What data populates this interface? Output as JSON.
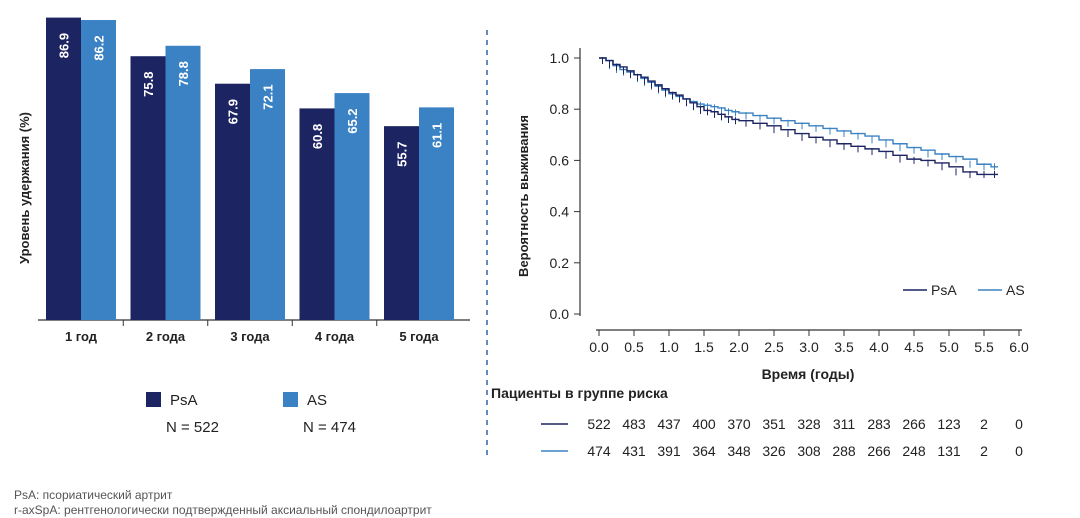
{
  "colors": {
    "psa": "#1c2461",
    "as": "#3b82c4",
    "divider": "#3b6fb0",
    "axis": "#333333"
  },
  "footnotes": {
    "psa": "PsA: псориатический артрит",
    "as": "r-axSpA:  рентгенологически подтвержденный аксиальный спондилоартрит"
  },
  "chart_data": [
    {
      "type": "bar",
      "ylabel": "Уровень удержания (%)",
      "xlabel": "",
      "categories": [
        "1 год",
        "2 года",
        "3 года",
        "4 года",
        "5 года"
      ],
      "ylim": [
        0,
        90
      ],
      "series": [
        {
          "name": "PsA",
          "values": [
            86.9,
            75.8,
            67.9,
            60.8,
            55.7
          ]
        },
        {
          "name": "AS",
          "values": [
            86.2,
            78.8,
            72.1,
            65.2,
            61.1
          ]
        }
      ],
      "legend": [
        {
          "name": "PsA",
          "n": "N = 522"
        },
        {
          "name": "AS",
          "n": "N = 474"
        }
      ],
      "legend_position": "bottom"
    },
    {
      "type": "line",
      "title": "",
      "xlabel": "Время (годы)",
      "ylabel": "Вероятность выживания",
      "xlim": [
        0,
        6
      ],
      "ylim": [
        0,
        1
      ],
      "xticks": [
        "0.0",
        "0.5",
        "1.0",
        "1.5",
        "2.0",
        "2.5",
        "3.0",
        "3.5",
        "4.0",
        "4.5",
        "5.0",
        "5.5",
        "6.0"
      ],
      "yticks": [
        "0.0",
        "0.2",
        "0.4",
        "0.6",
        "0.8",
        "1.0"
      ],
      "legend_position": "bottom-right",
      "series": [
        {
          "name": "PsA",
          "x": [
            0,
            0.1,
            0.2,
            0.3,
            0.4,
            0.5,
            0.6,
            0.7,
            0.8,
            0.9,
            1.0,
            1.1,
            1.2,
            1.3,
            1.4,
            1.5,
            1.6,
            1.7,
            1.8,
            1.9,
            2.0,
            2.2,
            2.4,
            2.6,
            2.8,
            3.0,
            3.2,
            3.4,
            3.6,
            3.8,
            4.0,
            4.2,
            4.4,
            4.6,
            4.8,
            5.0,
            5.2,
            5.4,
            5.6,
            5.7
          ],
          "y": [
            1.0,
            0.99,
            0.975,
            0.965,
            0.95,
            0.935,
            0.925,
            0.91,
            0.895,
            0.88,
            0.865,
            0.855,
            0.84,
            0.825,
            0.81,
            0.795,
            0.79,
            0.78,
            0.77,
            0.76,
            0.755,
            0.745,
            0.735,
            0.72,
            0.705,
            0.69,
            0.68,
            0.665,
            0.655,
            0.645,
            0.635,
            0.62,
            0.605,
            0.6,
            0.59,
            0.575,
            0.555,
            0.545,
            0.545,
            0.545
          ]
        },
        {
          "name": "AS",
          "x": [
            0,
            0.1,
            0.2,
            0.3,
            0.4,
            0.5,
            0.6,
            0.7,
            0.8,
            0.9,
            1.0,
            1.1,
            1.2,
            1.3,
            1.4,
            1.5,
            1.6,
            1.7,
            1.8,
            1.9,
            2.0,
            2.2,
            2.4,
            2.6,
            2.8,
            3.0,
            3.2,
            3.4,
            3.6,
            3.8,
            4.0,
            4.2,
            4.4,
            4.6,
            4.8,
            5.0,
            5.2,
            5.4,
            5.6,
            5.7
          ],
          "y": [
            1.0,
            0.99,
            0.97,
            0.955,
            0.945,
            0.935,
            0.92,
            0.905,
            0.89,
            0.875,
            0.86,
            0.85,
            0.84,
            0.83,
            0.82,
            0.815,
            0.81,
            0.805,
            0.795,
            0.79,
            0.785,
            0.775,
            0.765,
            0.755,
            0.745,
            0.735,
            0.725,
            0.715,
            0.705,
            0.695,
            0.68,
            0.665,
            0.65,
            0.64,
            0.625,
            0.615,
            0.605,
            0.585,
            0.575,
            0.575
          ]
        }
      ]
    },
    {
      "type": "table",
      "title": "Пациенты в группе риска",
      "x": [
        "0.0",
        "0.5",
        "1.0",
        "1.5",
        "2.0",
        "2.5",
        "3.0",
        "3.5",
        "4.0",
        "4.5",
        "5.0",
        "5.5",
        "6.0"
      ],
      "rows": [
        {
          "series": "PsA",
          "values": [
            522,
            483,
            437,
            400,
            370,
            351,
            328,
            311,
            283,
            266,
            123,
            2,
            0
          ]
        },
        {
          "series": "AS",
          "values": [
            474,
            431,
            391,
            364,
            348,
            326,
            308,
            288,
            266,
            248,
            131,
            2,
            0
          ]
        }
      ]
    }
  ]
}
